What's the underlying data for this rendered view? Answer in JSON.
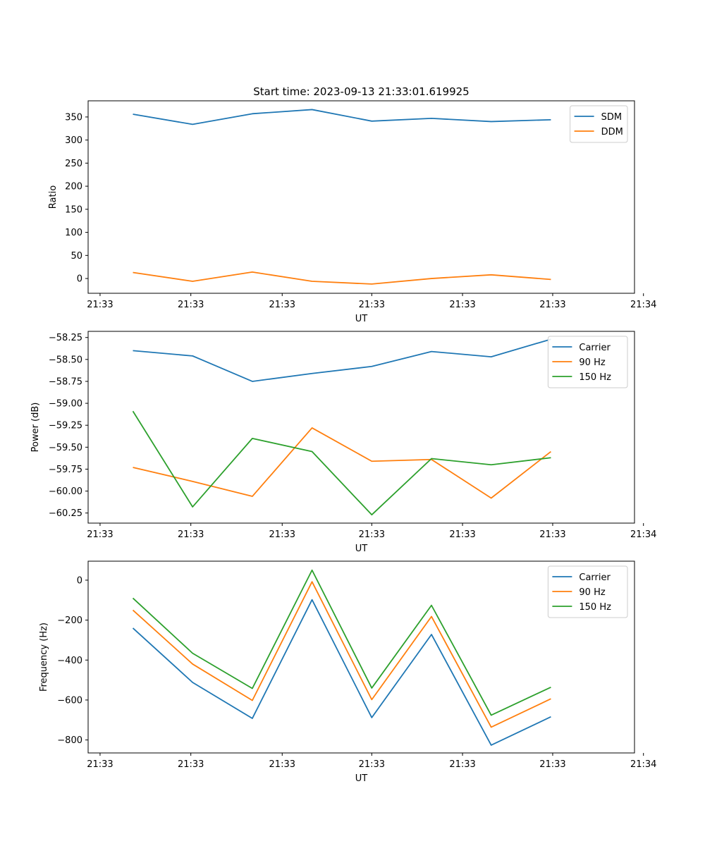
{
  "figure_title": "Start time: 2023-09-13 21:33:01.619925",
  "colors": {
    "blue": "#1f77b4",
    "orange": "#ff7f0e",
    "green": "#2ca02c"
  },
  "chart_data": [
    {
      "type": "line",
      "title": "Start time: 2023-09-13 21:33:01.619925",
      "xlabel": "UT",
      "ylabel": "Ratio",
      "x": [
        1,
        2,
        3,
        4,
        5,
        6,
        7,
        8
      ],
      "xlim": [
        0.25,
        9.4
      ],
      "x_ticks": [
        0.45,
        1.97,
        3.5,
        5.0,
        6.52,
        8.03,
        9.55
      ],
      "x_tick_labels": [
        "21:33",
        "21:33",
        "21:33",
        "21:33",
        "21:33",
        "21:33",
        "21:34"
      ],
      "ylim": [
        -32,
        385
      ],
      "y_ticks": [
        0,
        50,
        100,
        150,
        200,
        250,
        300,
        350
      ],
      "y_tick_labels": [
        "0",
        "50",
        "100",
        "150",
        "200",
        "250",
        "300",
        "350"
      ],
      "legend_position": "top-right",
      "series": [
        {
          "name": "SDM",
          "color": "#1f77b4",
          "values": [
            356,
            334,
            357,
            366,
            341,
            347,
            340,
            344
          ]
        },
        {
          "name": "DDM",
          "color": "#ff7f0e",
          "values": [
            13,
            -6,
            14,
            -6,
            -12,
            0,
            8,
            -2
          ]
        }
      ]
    },
    {
      "type": "line",
      "title": "",
      "xlabel": "UT",
      "ylabel": "Power (dB)",
      "x": [
        1,
        2,
        3,
        4,
        5,
        6,
        7,
        8
      ],
      "xlim": [
        0.25,
        9.4
      ],
      "x_ticks": [
        0.45,
        1.97,
        3.5,
        5.0,
        6.52,
        8.03,
        9.55
      ],
      "x_tick_labels": [
        "21:33",
        "21:33",
        "21:33",
        "21:33",
        "21:33",
        "21:33",
        "21:34"
      ],
      "ylim": [
        -60.365,
        -58.18
      ],
      "y_ticks": [
        -60.25,
        -60.0,
        -59.75,
        -59.5,
        -59.25,
        -59.0,
        -58.75,
        -58.5,
        -58.25
      ],
      "y_tick_labels": [
        "−60.25",
        "−60.00",
        "−59.75",
        "−59.50",
        "−59.25",
        "−59.00",
        "−58.75",
        "−58.50",
        "−58.25"
      ],
      "legend_position": "top-right",
      "series": [
        {
          "name": "Carrier",
          "color": "#1f77b4",
          "values": [
            -58.4,
            -58.46,
            -58.75,
            -58.66,
            -58.58,
            -58.41,
            -58.47,
            -58.27
          ]
        },
        {
          "name": "90 Hz",
          "color": "#ff7f0e",
          "values": [
            -59.73,
            -59.89,
            -60.06,
            -59.28,
            -59.66,
            -59.64,
            -60.08,
            -59.55
          ]
        },
        {
          "name": "150 Hz",
          "color": "#2ca02c",
          "values": [
            -59.09,
            -60.18,
            -59.4,
            -59.55,
            -60.27,
            -59.63,
            -59.7,
            -59.62
          ]
        }
      ]
    },
    {
      "type": "line",
      "title": "",
      "xlabel": "UT",
      "ylabel": "Frequency (Hz)",
      "x": [
        1,
        2,
        3,
        4,
        5,
        6,
        7,
        8
      ],
      "xlim": [
        0.25,
        9.4
      ],
      "x_ticks": [
        0.45,
        1.97,
        3.5,
        5.0,
        6.52,
        8.03,
        9.55
      ],
      "x_tick_labels": [
        "21:33",
        "21:33",
        "21:33",
        "21:33",
        "21:33",
        "21:33",
        "21:34"
      ],
      "ylim": [
        -865,
        95
      ],
      "y_ticks": [
        -800,
        -600,
        -400,
        -200,
        0
      ],
      "y_tick_labels": [
        "−800",
        "−600",
        "−400",
        "−200",
        "0"
      ],
      "legend_position": "top-right",
      "series": [
        {
          "name": "Carrier",
          "color": "#1f77b4",
          "values": [
            -240,
            -512,
            -692,
            -98,
            -688,
            -272,
            -826,
            -684
          ]
        },
        {
          "name": "90 Hz",
          "color": "#ff7f0e",
          "values": [
            -150,
            -420,
            -602,
            -8,
            -598,
            -182,
            -736,
            -594
          ]
        },
        {
          "name": "150 Hz",
          "color": "#2ca02c",
          "values": [
            -90,
            -366,
            -542,
            50,
            -540,
            -126,
            -676,
            -536
          ]
        }
      ]
    }
  ]
}
